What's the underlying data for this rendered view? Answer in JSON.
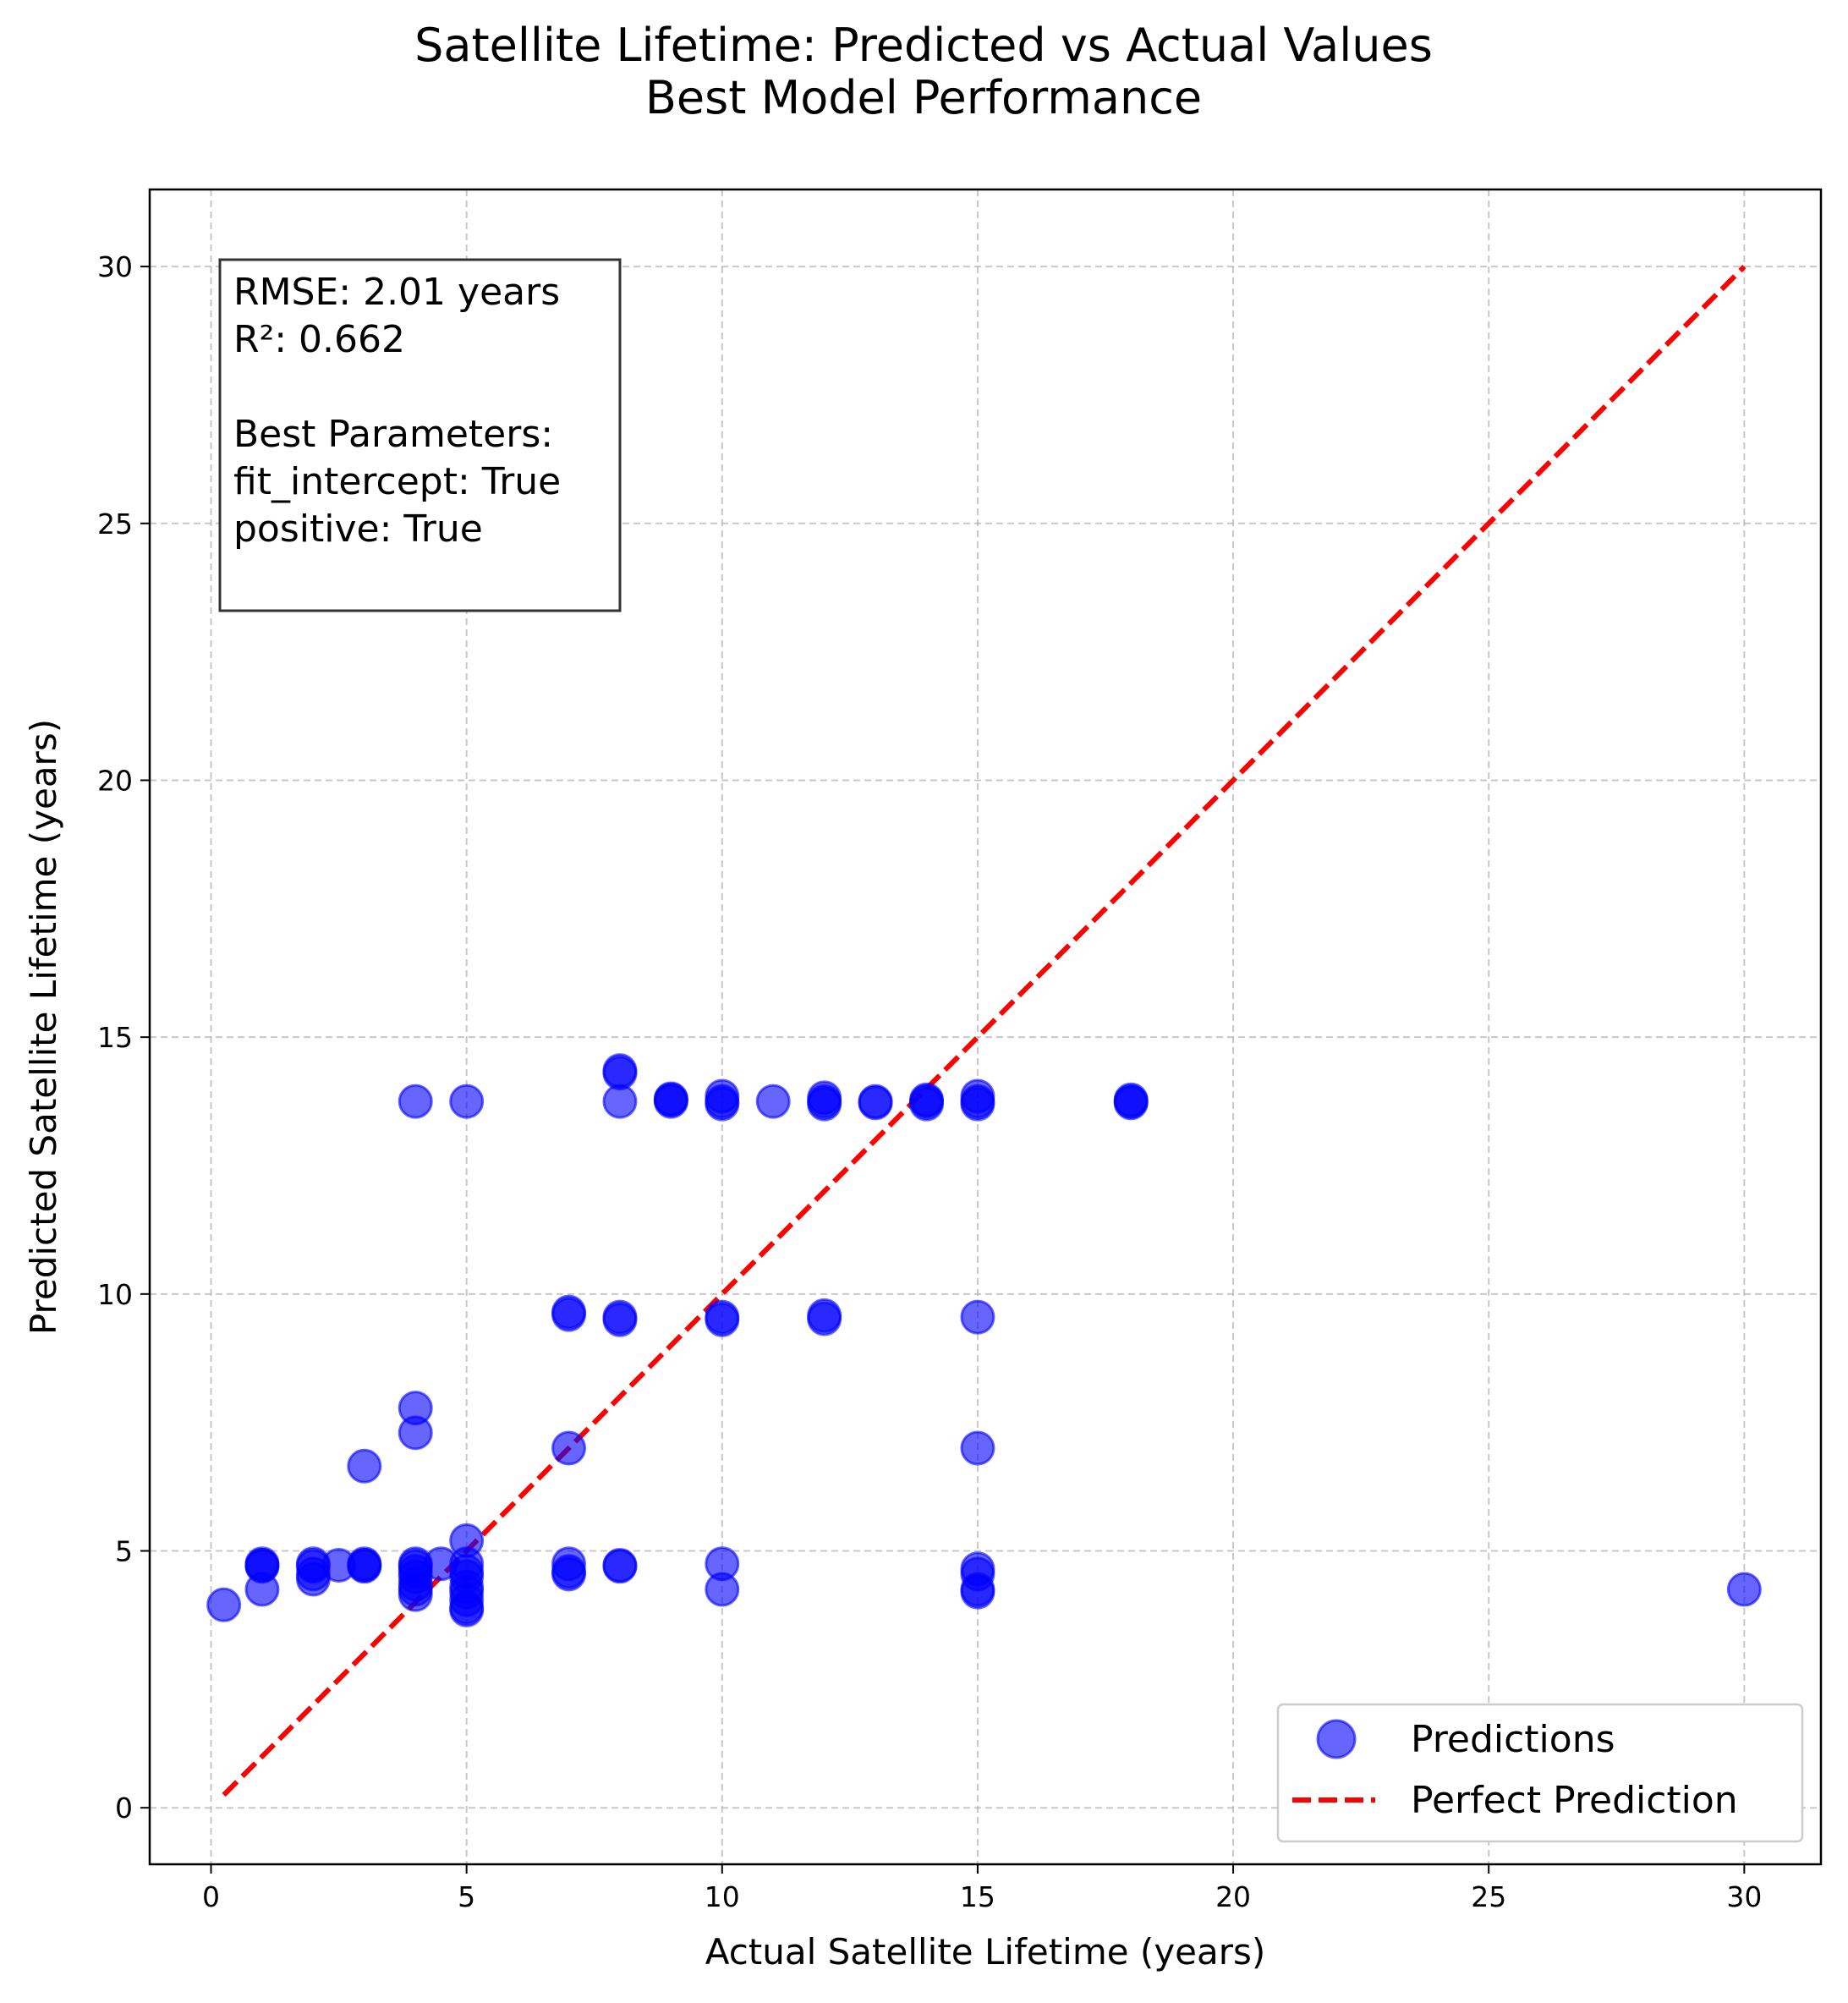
{
  "chart_data": {
    "type": "scatter",
    "title": "Satellite Lifetime: Predicted vs Actual Values",
    "subtitle": "Best Model Performance",
    "xlabel": "Actual Satellite Lifetime (years)",
    "ylabel": "Predicted Satellite Lifetime (years)",
    "xlim": [
      -1.2,
      31.5
    ],
    "ylim": [
      -1.1,
      31.5
    ],
    "xticks": [
      0,
      5,
      10,
      15,
      20,
      25,
      30
    ],
    "yticks": [
      0,
      5,
      10,
      15,
      20,
      25,
      30
    ],
    "grid": true,
    "legend_position": "lower-right",
    "stats_box": {
      "lines": [
        "RMSE: 2.01 years",
        "R²: 0.662",
        "",
        "Best Parameters:",
        "fit_intercept: True",
        "positive: True"
      ]
    },
    "series": [
      {
        "name": "Predictions",
        "kind": "scatter",
        "color": "#0000ff",
        "opacity": 0.6,
        "points": [
          [
            0.25,
            3.95
          ],
          [
            1,
            4.25
          ],
          [
            1,
            4.7
          ],
          [
            1,
            4.72
          ],
          [
            1,
            4.75
          ],
          [
            2,
            4.45
          ],
          [
            2,
            4.55
          ],
          [
            2,
            4.7
          ],
          [
            2,
            4.75
          ],
          [
            2.5,
            4.72
          ],
          [
            3,
            6.65
          ],
          [
            3,
            4.7
          ],
          [
            3,
            4.72
          ],
          [
            3,
            4.75
          ],
          [
            4,
            13.75
          ],
          [
            4,
            7.78
          ],
          [
            4,
            7.3
          ],
          [
            4,
            4.75
          ],
          [
            4,
            4.6
          ],
          [
            4,
            4.35
          ],
          [
            4,
            4.25
          ],
          [
            4,
            4.15
          ],
          [
            4,
            4.7
          ],
          [
            4,
            4.5
          ],
          [
            4.5,
            4.75
          ],
          [
            5,
            13.75
          ],
          [
            5,
            5.2
          ],
          [
            5,
            4.75
          ],
          [
            5,
            4.6
          ],
          [
            5,
            4.5
          ],
          [
            5,
            4.3
          ],
          [
            5,
            4.2
          ],
          [
            5,
            4.05
          ],
          [
            5,
            3.9
          ],
          [
            5,
            3.85
          ],
          [
            7,
            9.65
          ],
          [
            7,
            9.6
          ],
          [
            7,
            7.0
          ],
          [
            7,
            4.75
          ],
          [
            7,
            4.6
          ],
          [
            7,
            4.55
          ],
          [
            8,
            14.35
          ],
          [
            8,
            14.3
          ],
          [
            8,
            13.75
          ],
          [
            8,
            9.55
          ],
          [
            8,
            9.5
          ],
          [
            8,
            4.72
          ],
          [
            8,
            4.7
          ],
          [
            9,
            13.8
          ],
          [
            9,
            13.75
          ],
          [
            9,
            13.78
          ],
          [
            10,
            13.85
          ],
          [
            10,
            13.75
          ],
          [
            10,
            13.7
          ],
          [
            10,
            9.55
          ],
          [
            10,
            9.5
          ],
          [
            10,
            4.75
          ],
          [
            10,
            4.25
          ],
          [
            11,
            13.75
          ],
          [
            12,
            13.82
          ],
          [
            12,
            13.75
          ],
          [
            12,
            13.7
          ],
          [
            12,
            9.58
          ],
          [
            12,
            9.52
          ],
          [
            13,
            13.75
          ],
          [
            13,
            13.72
          ],
          [
            14,
            13.75
          ],
          [
            14,
            13.7
          ],
          [
            14,
            13.78
          ],
          [
            15,
            13.85
          ],
          [
            15,
            13.75
          ],
          [
            15,
            13.7
          ],
          [
            15,
            9.55
          ],
          [
            15,
            7.0
          ],
          [
            15,
            4.65
          ],
          [
            15,
            4.55
          ],
          [
            15,
            4.25
          ],
          [
            15,
            4.2
          ],
          [
            18,
            13.78
          ],
          [
            18,
            13.72
          ],
          [
            18,
            13.75
          ],
          [
            30,
            4.25
          ]
        ]
      },
      {
        "name": "Perfect Prediction",
        "kind": "line",
        "color": "#ff0000",
        "dashed": true,
        "points": [
          [
            0.25,
            0.25
          ],
          [
            30,
            30
          ]
        ]
      }
    ]
  }
}
